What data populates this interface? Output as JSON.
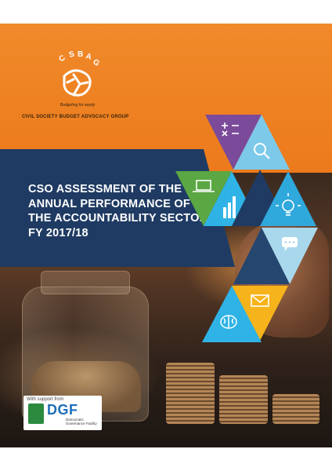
{
  "org": {
    "logo_text": "CSBAG",
    "tagline": "Budgeting for equity",
    "name": "CIVIL SOCIETY BUDGET ADVOCACY GROUP"
  },
  "cover": {
    "title": "CSO ASSESSMENT OF THE ANNUAL PERFORMANCE OF THE ACCOUNTABILITY SECTOR FY 2017/18"
  },
  "support": {
    "label": "With support from",
    "logo_text": "DGF",
    "subtitle": "Democratic Governance Facility"
  },
  "icons": [
    "math-operators-icon",
    "magnifier-icon",
    "laptop-icon",
    "bar-chart-icon",
    "lightbulb-icon",
    "chat-bubble-icon",
    "envelope-icon",
    "brain-icon"
  ],
  "colors": {
    "orange": "#ee7d1f",
    "navy": "#1f3b63",
    "purple": "#7b4a9a",
    "cyan": "#2fb3e6",
    "green": "#5aa744",
    "yellow": "#f6b31b",
    "light_blue": "#a9d7ec"
  }
}
